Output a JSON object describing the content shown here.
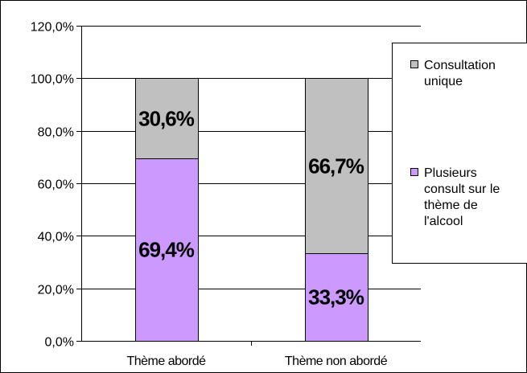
{
  "chart_data": {
    "type": "bar",
    "stacked": true,
    "categories": [
      "Thème abordé",
      "Thème non abordé"
    ],
    "series": [
      {
        "name_lines": [
          "Plusieurs",
          "consult sur le",
          "thème de",
          "l'alcool"
        ],
        "values": [
          69.4,
          33.3
        ],
        "labels": [
          "69,4%",
          "33,3%"
        ],
        "color": "#cc99ff"
      },
      {
        "name_lines": [
          "Consultation",
          "unique"
        ],
        "values": [
          30.6,
          66.7
        ],
        "labels": [
          "30,6%",
          "66,7%"
        ],
        "color": "#c0c0c0"
      }
    ],
    "ylim": [
      0,
      120
    ],
    "yticks": [
      0,
      20,
      40,
      60,
      80,
      100,
      120
    ],
    "ytick_labels": [
      "0,0%",
      "20,0%",
      "40,0%",
      "60,0%",
      "80,0%",
      "100,0%",
      "120,0%"
    ],
    "grid": true,
    "legend_position": "right"
  }
}
